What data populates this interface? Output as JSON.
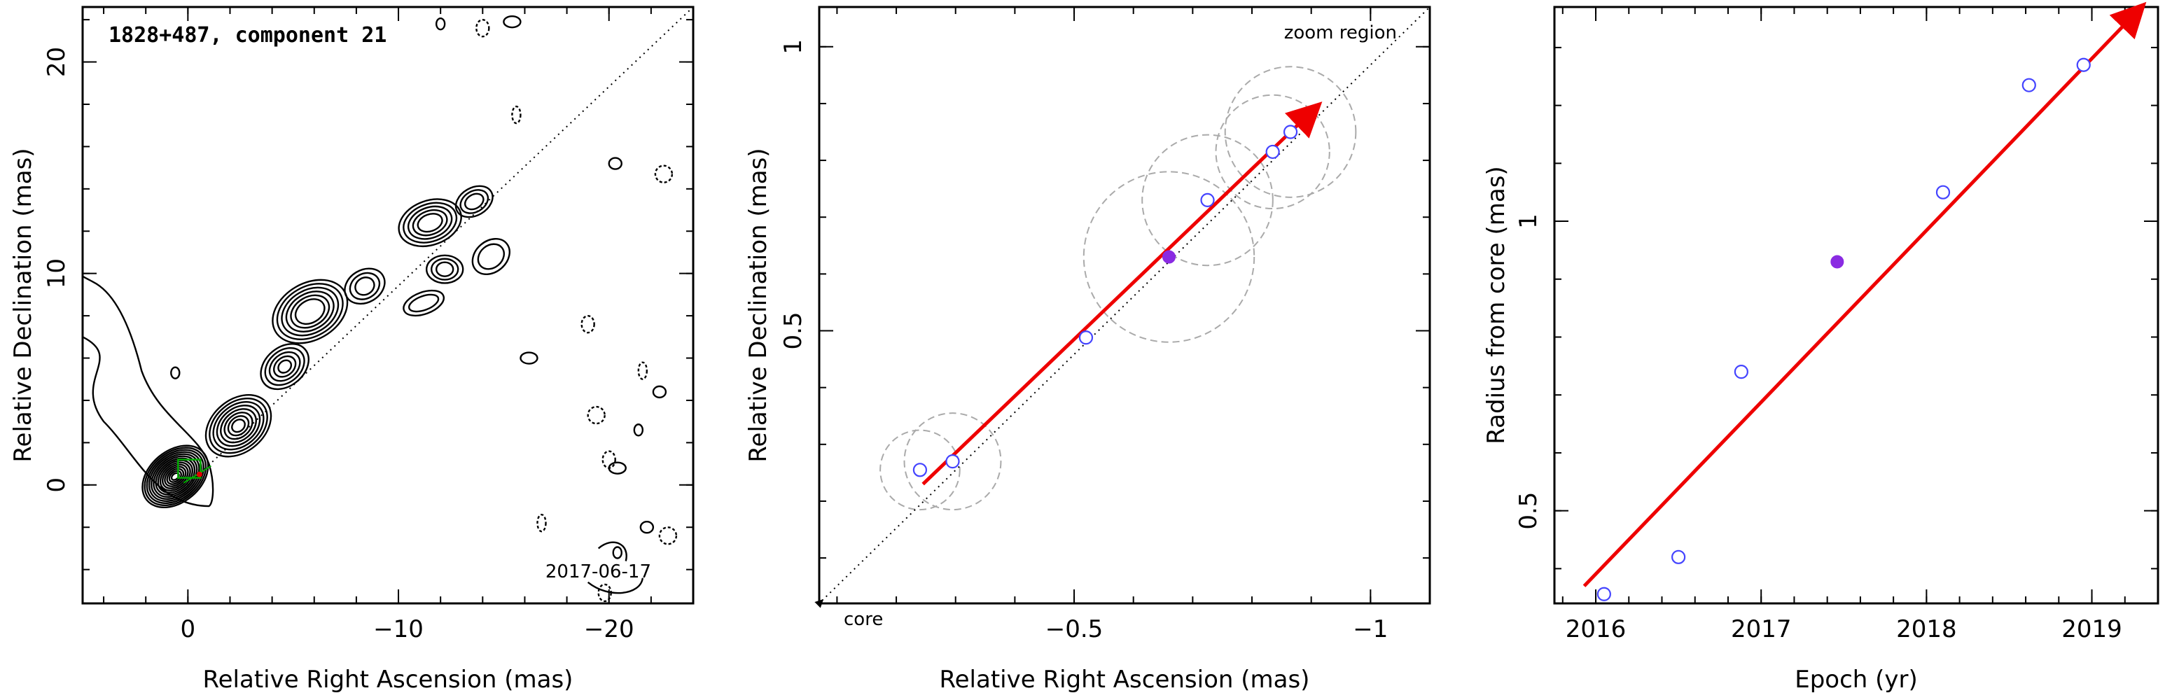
{
  "chart_data": [
    {
      "type": "contour",
      "title": "1828+487, component 21",
      "xlabel": "Relative Right Ascension (mas)",
      "ylabel": "Relative Declination (mas)",
      "xlim": [
        5,
        -24
      ],
      "ylim": [
        -5.6,
        22.6
      ],
      "xticks": [
        {
          "v": 0,
          "t": "0"
        },
        {
          "v": -10,
          "t": "−10"
        },
        {
          "v": -20,
          "t": "−20"
        }
      ],
      "yticks": [
        {
          "v": 0,
          "t": "0"
        },
        {
          "v": 10,
          "t": "10"
        },
        {
          "v": 20,
          "t": "20"
        }
      ],
      "annotations": {
        "date": "2017-06-17"
      },
      "track_line": {
        "from": [
          0,
          0
        ],
        "to": [
          -24,
          22.6
        ],
        "style": "dotted"
      },
      "colors": {
        "component_box": "#00aa00",
        "component_marker": "#e00000"
      }
    },
    {
      "type": "scatter",
      "title": "",
      "xlabel": "Relative Right Ascension (mas)",
      "ylabel": "Relative Declination (mas)",
      "xlim": [
        -0.07,
        -1.1
      ],
      "ylim": [
        0.02,
        1.07
      ],
      "xticks": [
        {
          "v": -0.5,
          "t": "−0.5"
        },
        {
          "v": -1,
          "t": "−1"
        }
      ],
      "yticks": [
        {
          "v": 0.5,
          "t": "0.5"
        },
        {
          "v": 1,
          "t": "1"
        }
      ],
      "annotations": {
        "zoom": "zoom region",
        "core": "core"
      },
      "points": [
        {
          "x": -0.24,
          "y": 0.255,
          "r": 0.07
        },
        {
          "x": -0.295,
          "y": 0.27,
          "r": 0.085
        },
        {
          "x": -0.52,
          "y": 0.488,
          "r": 0.0
        },
        {
          "x": -0.66,
          "y": 0.63,
          "r": 0.15,
          "filled": true
        },
        {
          "x": -0.725,
          "y": 0.73,
          "r": 0.115
        },
        {
          "x": -0.835,
          "y": 0.815,
          "r": 0.1
        },
        {
          "x": -0.865,
          "y": 0.85,
          "r": 0.115
        }
      ],
      "arrow": {
        "from": [
          -0.245,
          0.23
        ],
        "to": [
          -0.91,
          0.895
        ]
      },
      "core_line": {
        "from": [
          -0.07,
          0.02
        ],
        "to": [
          -1.1,
          1.07
        ]
      },
      "colors": {
        "open_point": "#4444ff",
        "filled_point": "#8a2be2",
        "arrow": "#ee0000",
        "circles": "#aaaaaa"
      }
    },
    {
      "type": "scatter",
      "title": "",
      "xlabel": "Epoch (yr)",
      "ylabel": "Radius from core (mas)",
      "xlim": [
        2015.75,
        2019.4
      ],
      "ylim": [
        0.34,
        1.37
      ],
      "xticks": [
        {
          "v": 2016,
          "t": "2016"
        },
        {
          "v": 2017,
          "t": "2017"
        },
        {
          "v": 2018,
          "t": "2018"
        },
        {
          "v": 2019,
          "t": "2019"
        }
      ],
      "yticks": [
        {
          "v": 0.5,
          "t": "0.5"
        },
        {
          "v": 1,
          "t": "1"
        }
      ],
      "points": [
        {
          "x": 2016.05,
          "y": 0.356
        },
        {
          "x": 2016.5,
          "y": 0.42
        },
        {
          "x": 2016.88,
          "y": 0.74
        },
        {
          "x": 2017.46,
          "y": 0.93,
          "filled": true
        },
        {
          "x": 2018.1,
          "y": 1.05
        },
        {
          "x": 2018.62,
          "y": 1.235
        },
        {
          "x": 2018.95,
          "y": 1.27
        }
      ],
      "fit_line": {
        "from": [
          2015.93,
          0.37
        ],
        "to": [
          2019.3,
          1.37
        ]
      },
      "colors": {
        "open_point": "#4444ff",
        "filled_point": "#8a2be2",
        "fit": "#ee0000"
      }
    }
  ]
}
